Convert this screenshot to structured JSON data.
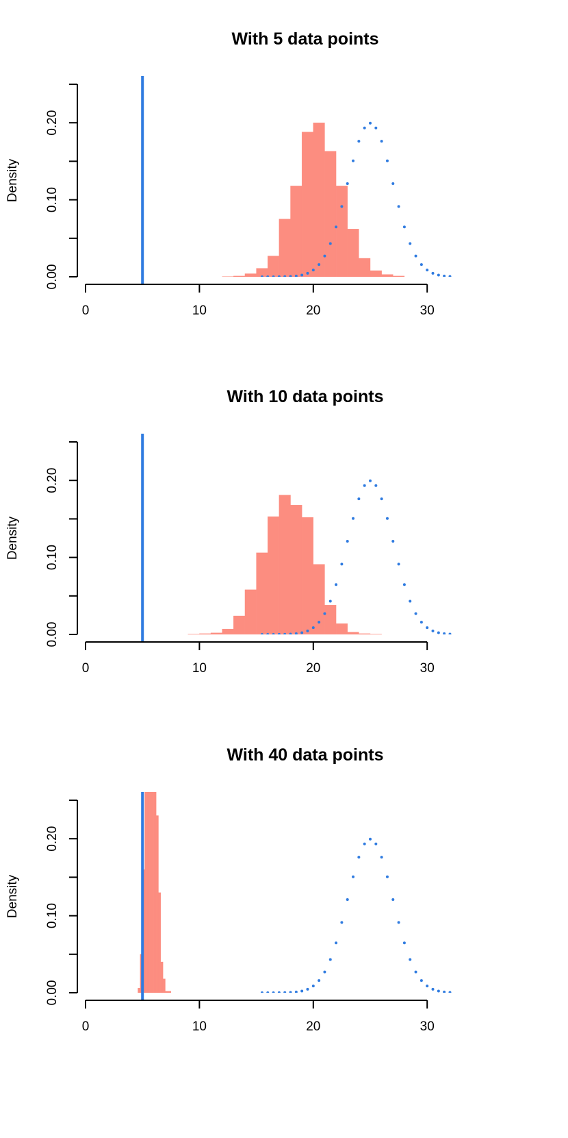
{
  "colors": {
    "histogram_fill": "#fc8d80",
    "reference_line": "#2f7be0",
    "dotted_curve": "#2f7be0",
    "axis": "#000000"
  },
  "chart_data": [
    {
      "type": "histogram",
      "title": "With 5 data points",
      "xlabel": "",
      "ylabel": "Density",
      "xlim": [
        0,
        32
      ],
      "ylim": [
        0,
        0.25
      ],
      "x_ticks": [
        0,
        10,
        20,
        30
      ],
      "y_ticks": [
        0.0,
        0.05,
        0.1,
        0.15,
        0.2,
        0.25
      ],
      "y_tick_labels": [
        {
          "value": 0.0,
          "label": "0.00"
        },
        {
          "value": 0.1,
          "label": "0.10"
        },
        {
          "value": 0.2,
          "label": "0.20"
        }
      ],
      "vertical_line_x": 5,
      "histogram": {
        "bins": [
          {
            "x0": 12,
            "x1": 13,
            "density": 0.0003
          },
          {
            "x0": 13,
            "x1": 14,
            "density": 0.001
          },
          {
            "x0": 14,
            "x1": 15,
            "density": 0.004
          },
          {
            "x0": 15,
            "x1": 16,
            "density": 0.011
          },
          {
            "x0": 16,
            "x1": 17,
            "density": 0.027
          },
          {
            "x0": 17,
            "x1": 18,
            "density": 0.075
          },
          {
            "x0": 18,
            "x1": 19,
            "density": 0.118
          },
          {
            "x0": 19,
            "x1": 20,
            "density": 0.188
          },
          {
            "x0": 20,
            "x1": 21,
            "density": 0.2
          },
          {
            "x0": 21,
            "x1": 22,
            "density": 0.163
          },
          {
            "x0": 22,
            "x1": 23,
            "density": 0.118
          },
          {
            "x0": 23,
            "x1": 24,
            "density": 0.062
          },
          {
            "x0": 24,
            "x1": 25,
            "density": 0.024
          },
          {
            "x0": 25,
            "x1": 26,
            "density": 0.008
          },
          {
            "x0": 26,
            "x1": 27,
            "density": 0.003
          },
          {
            "x0": 27,
            "x1": 28,
            "density": 0.001
          }
        ]
      },
      "curve": {
        "style": "dotted",
        "distribution": "normal",
        "mean": 25,
        "sd": 2,
        "x_range": [
          15.5,
          32
        ]
      }
    },
    {
      "type": "histogram",
      "title": "With 10 data points",
      "xlabel": "",
      "ylabel": "Density",
      "xlim": [
        0,
        32
      ],
      "ylim": [
        0,
        0.25
      ],
      "x_ticks": [
        0,
        10,
        20,
        30
      ],
      "y_ticks": [
        0.0,
        0.05,
        0.1,
        0.15,
        0.2,
        0.25
      ],
      "y_tick_labels": [
        {
          "value": 0.0,
          "label": "0.00"
        },
        {
          "value": 0.1,
          "label": "0.10"
        },
        {
          "value": 0.2,
          "label": "0.20"
        }
      ],
      "vertical_line_x": 5,
      "histogram": {
        "bins": [
          {
            "x0": 9,
            "x1": 10,
            "density": 0.0005
          },
          {
            "x0": 10,
            "x1": 11,
            "density": 0.001
          },
          {
            "x0": 11,
            "x1": 12,
            "density": 0.002
          },
          {
            "x0": 12,
            "x1": 13,
            "density": 0.007
          },
          {
            "x0": 13,
            "x1": 14,
            "density": 0.024
          },
          {
            "x0": 14,
            "x1": 15,
            "density": 0.058
          },
          {
            "x0": 15,
            "x1": 16,
            "density": 0.106
          },
          {
            "x0": 16,
            "x1": 17,
            "density": 0.153
          },
          {
            "x0": 17,
            "x1": 18,
            "density": 0.181
          },
          {
            "x0": 18,
            "x1": 19,
            "density": 0.168
          },
          {
            "x0": 19,
            "x1": 20,
            "density": 0.152
          },
          {
            "x0": 20,
            "x1": 21,
            "density": 0.091
          },
          {
            "x0": 21,
            "x1": 22,
            "density": 0.038
          },
          {
            "x0": 22,
            "x1": 23,
            "density": 0.014
          },
          {
            "x0": 23,
            "x1": 24,
            "density": 0.003
          },
          {
            "x0": 24,
            "x1": 25,
            "density": 0.001
          },
          {
            "x0": 25,
            "x1": 26,
            "density": 0.0005
          }
        ]
      },
      "curve": {
        "style": "dotted",
        "distribution": "normal",
        "mean": 25,
        "sd": 2,
        "x_range": [
          15.5,
          32
        ]
      }
    },
    {
      "type": "histogram",
      "title": "With 40 data points",
      "xlabel": "",
      "ylabel": "Density",
      "xlim": [
        0,
        32
      ],
      "ylim": [
        0,
        0.25
      ],
      "x_ticks": [
        0,
        10,
        20,
        30
      ],
      "y_ticks": [
        0.0,
        0.05,
        0.1,
        0.15,
        0.2,
        0.25
      ],
      "y_tick_labels": [
        {
          "value": 0.0,
          "label": "0.00"
        },
        {
          "value": 0.1,
          "label": "0.10"
        },
        {
          "value": 0.2,
          "label": "0.20"
        }
      ],
      "vertical_line_x": 5,
      "histogram": {
        "bins": [
          {
            "x0": 4.6,
            "x1": 4.8,
            "density": 0.006
          },
          {
            "x0": 4.8,
            "x1": 5.0,
            "density": 0.05
          },
          {
            "x0": 5.0,
            "x1": 5.2,
            "density": 0.16
          },
          {
            "x0": 5.2,
            "x1": 5.4,
            "density": 0.3
          },
          {
            "x0": 5.4,
            "x1": 5.6,
            "density": 0.5
          },
          {
            "x0": 5.6,
            "x1": 5.8,
            "density": 0.62
          },
          {
            "x0": 5.8,
            "x1": 6.0,
            "density": 0.6
          },
          {
            "x0": 6.0,
            "x1": 6.2,
            "density": 0.5
          },
          {
            "x0": 6.2,
            "x1": 6.4,
            "density": 0.23
          },
          {
            "x0": 6.4,
            "x1": 6.6,
            "density": 0.13
          },
          {
            "x0": 6.6,
            "x1": 6.8,
            "density": 0.04
          },
          {
            "x0": 6.8,
            "x1": 7.0,
            "density": 0.018
          },
          {
            "x0": 7.0,
            "x1": 7.5,
            "density": 0.002
          }
        ]
      },
      "curve": {
        "style": "dotted",
        "distribution": "normal",
        "mean": 25,
        "sd": 2,
        "x_range": [
          15.5,
          32
        ]
      }
    }
  ]
}
